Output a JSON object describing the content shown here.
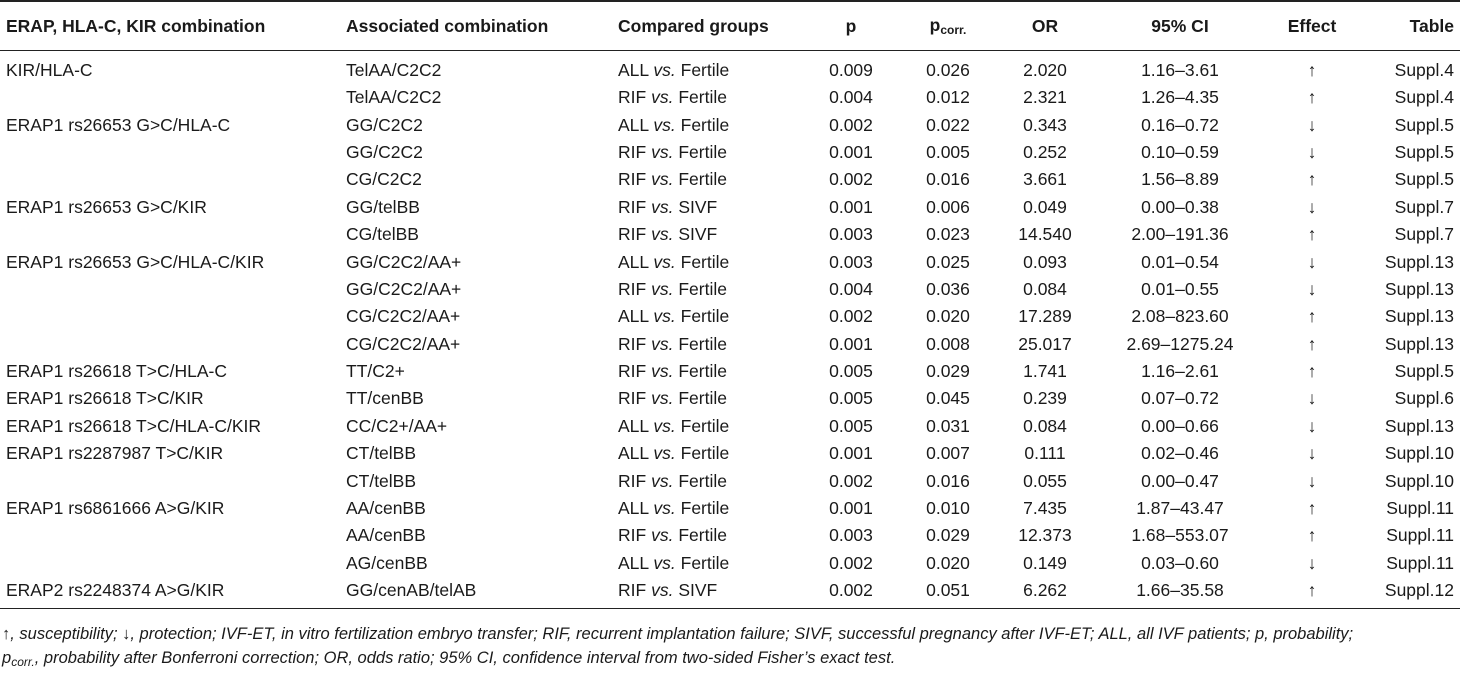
{
  "headers": {
    "combo": "ERAP, HLA-C, KIR combination",
    "assoc": "Associated combination",
    "groups": "Compared groups",
    "p": "p",
    "pcorr_base": "p",
    "pcorr_sub": "corr.",
    "or": "OR",
    "ci": "95% CI",
    "effect": "Effect",
    "table": "Table"
  },
  "rows": [
    {
      "combo": "KIR/HLA-C",
      "assoc": "TelAA/C2C2",
      "g1": "ALL",
      "vs": "vs.",
      "g2": "Fertile",
      "p": "0.009",
      "pcorr": "0.026",
      "or": "2.020",
      "ci": "1.16–3.61",
      "effect": "↑",
      "table": "Suppl.4"
    },
    {
      "combo": "",
      "assoc": "TelAA/C2C2",
      "g1": "RIF",
      "vs": "vs.",
      "g2": "Fertile",
      "p": "0.004",
      "pcorr": "0.012",
      "or": "2.321",
      "ci": "1.26–4.35",
      "effect": "↑",
      "table": "Suppl.4"
    },
    {
      "combo": "ERAP1 rs26653 G>C/HLA-C",
      "assoc": "GG/C2C2",
      "g1": "ALL",
      "vs": "vs.",
      "g2": "Fertile",
      "p": "0.002",
      "pcorr": "0.022",
      "or": "0.343",
      "ci": "0.16–0.72",
      "effect": "↓",
      "table": "Suppl.5"
    },
    {
      "combo": "",
      "assoc": "GG/C2C2",
      "g1": "RIF",
      "vs": "vs.",
      "g2": "Fertile",
      "p": "0.001",
      "pcorr": "0.005",
      "or": "0.252",
      "ci": "0.10–0.59",
      "effect": "↓",
      "table": "Suppl.5"
    },
    {
      "combo": "",
      "assoc": "CG/C2C2",
      "g1": "RIF",
      "vs": "vs.",
      "g2": "Fertile",
      "p": "0.002",
      "pcorr": "0.016",
      "or": "3.661",
      "ci": "1.56–8.89",
      "effect": "↑",
      "table": "Suppl.5"
    },
    {
      "combo": "ERAP1 rs26653 G>C/KIR",
      "assoc": "GG/telBB",
      "g1": "RIF",
      "vs": "vs.",
      "g2": "SIVF",
      "p": "0.001",
      "pcorr": "0.006",
      "or": "0.049",
      "ci": "0.00–0.38",
      "effect": "↓",
      "table": "Suppl.7"
    },
    {
      "combo": "",
      "assoc": "CG/telBB",
      "g1": "RIF",
      "vs": "vs.",
      "g2": "SIVF",
      "p": "0.003",
      "pcorr": "0.023",
      "or": "14.540",
      "ci": "2.00–191.36",
      "effect": "↑",
      "table": "Suppl.7"
    },
    {
      "combo": "ERAP1 rs26653 G>C/HLA-C/KIR",
      "assoc": "GG/C2C2/AA+",
      "g1": "ALL",
      "vs": "vs.",
      "g2": "Fertile",
      "p": "0.003",
      "pcorr": "0.025",
      "or": "0.093",
      "ci": "0.01–0.54",
      "effect": "↓",
      "table": "Suppl.13"
    },
    {
      "combo": "",
      "assoc": "GG/C2C2/AA+",
      "g1": "RIF",
      "vs": "vs.",
      "g2": "Fertile",
      "p": "0.004",
      "pcorr": "0.036",
      "or": "0.084",
      "ci": "0.01–0.55",
      "effect": "↓",
      "table": "Suppl.13"
    },
    {
      "combo": "",
      "assoc": "CG/C2C2/AA+",
      "g1": "ALL",
      "vs": "vs.",
      "g2": "Fertile",
      "p": "0.002",
      "pcorr": "0.020",
      "or": "17.289",
      "ci": "2.08–823.60",
      "effect": "↑",
      "table": "Suppl.13"
    },
    {
      "combo": "",
      "assoc": "CG/C2C2/AA+",
      "g1": "RIF",
      "vs": "vs.",
      "g2": "Fertile",
      "p": "0.001",
      "pcorr": "0.008",
      "or": "25.017",
      "ci": "2.69–1275.24",
      "effect": "↑",
      "table": "Suppl.13"
    },
    {
      "combo": "ERAP1 rs26618 T>C/HLA-C",
      "assoc": "TT/C2+",
      "g1": "RIF",
      "vs": "vs.",
      "g2": "Fertile",
      "p": "0.005",
      "pcorr": "0.029",
      "or": "1.741",
      "ci": "1.16–2.61",
      "effect": "↑",
      "table": "Suppl.5"
    },
    {
      "combo": "ERAP1 rs26618 T>C/KIR",
      "assoc": "TT/cenBB",
      "g1": "RIF",
      "vs": "vs.",
      "g2": "Fertile",
      "p": "0.005",
      "pcorr": "0.045",
      "or": "0.239",
      "ci": "0.07–0.72",
      "effect": "↓",
      "table": "Suppl.6"
    },
    {
      "combo": "ERAP1 rs26618 T>C/HLA-C/KIR",
      "assoc": "CC/C2+/AA+",
      "g1": "ALL",
      "vs": "vs.",
      "g2": "Fertile",
      "p": "0.005",
      "pcorr": "0.031",
      "or": "0.084",
      "ci": "0.00–0.66",
      "effect": "↓",
      "table": "Suppl.13"
    },
    {
      "combo": "ERAP1 rs2287987 T>C/KIR",
      "assoc": "CT/telBB",
      "g1": "ALL",
      "vs": "vs.",
      "g2": "Fertile",
      "p": "0.001",
      "pcorr": "0.007",
      "or": "0.111",
      "ci": "0.02–0.46",
      "effect": "↓",
      "table": "Suppl.10"
    },
    {
      "combo": "",
      "assoc": "CT/telBB",
      "g1": "RIF",
      "vs": "vs.",
      "g2": "Fertile",
      "p": "0.002",
      "pcorr": "0.016",
      "or": "0.055",
      "ci": "0.00–0.47",
      "effect": "↓",
      "table": "Suppl.10"
    },
    {
      "combo": "ERAP1 rs6861666 A>G/KIR",
      "assoc": "AA/cenBB",
      "g1": "ALL",
      "vs": "vs.",
      "g2": "Fertile",
      "p": "0.001",
      "pcorr": "0.010",
      "or": "7.435",
      "ci": "1.87–43.47",
      "effect": "↑",
      "table": "Suppl.11"
    },
    {
      "combo": "",
      "assoc": "AA/cenBB",
      "g1": "RIF",
      "vs": "vs.",
      "g2": "Fertile",
      "p": "0.003",
      "pcorr": "0.029",
      "or": "12.373",
      "ci": "1.68–553.07",
      "effect": "↑",
      "table": "Suppl.11"
    },
    {
      "combo": "",
      "assoc": "AG/cenBB",
      "g1": "ALL",
      "vs": "vs.",
      "g2": "Fertile",
      "p": "0.002",
      "pcorr": "0.020",
      "or": "0.149",
      "ci": "0.03–0.60",
      "effect": "↓",
      "table": "Suppl.11"
    },
    {
      "combo": "ERAP2 rs2248374 A>G/KIR",
      "assoc": "GG/cenAB/telAB",
      "g1": "RIF",
      "vs": "vs.",
      "g2": "SIVF",
      "p": "0.002",
      "pcorr": "0.051",
      "or": "6.262",
      "ci": "1.66–35.58",
      "effect": "↑",
      "table": "Suppl.12"
    }
  ],
  "footnote": {
    "line1": "↑, susceptibility; ↓, protection; IVF-ET, in vitro fertilization embryo transfer; RIF, recurrent implantation failure; SIVF, successful pregnancy after IVF-ET; ALL, all IVF patients; p, probability;",
    "line2_p": "p",
    "line2_sub": "corr.",
    "line2_rest": ", probability after Bonferroni correction; OR, odds ratio; 95% CI, confidence interval from two-sided Fisher’s exact test."
  }
}
